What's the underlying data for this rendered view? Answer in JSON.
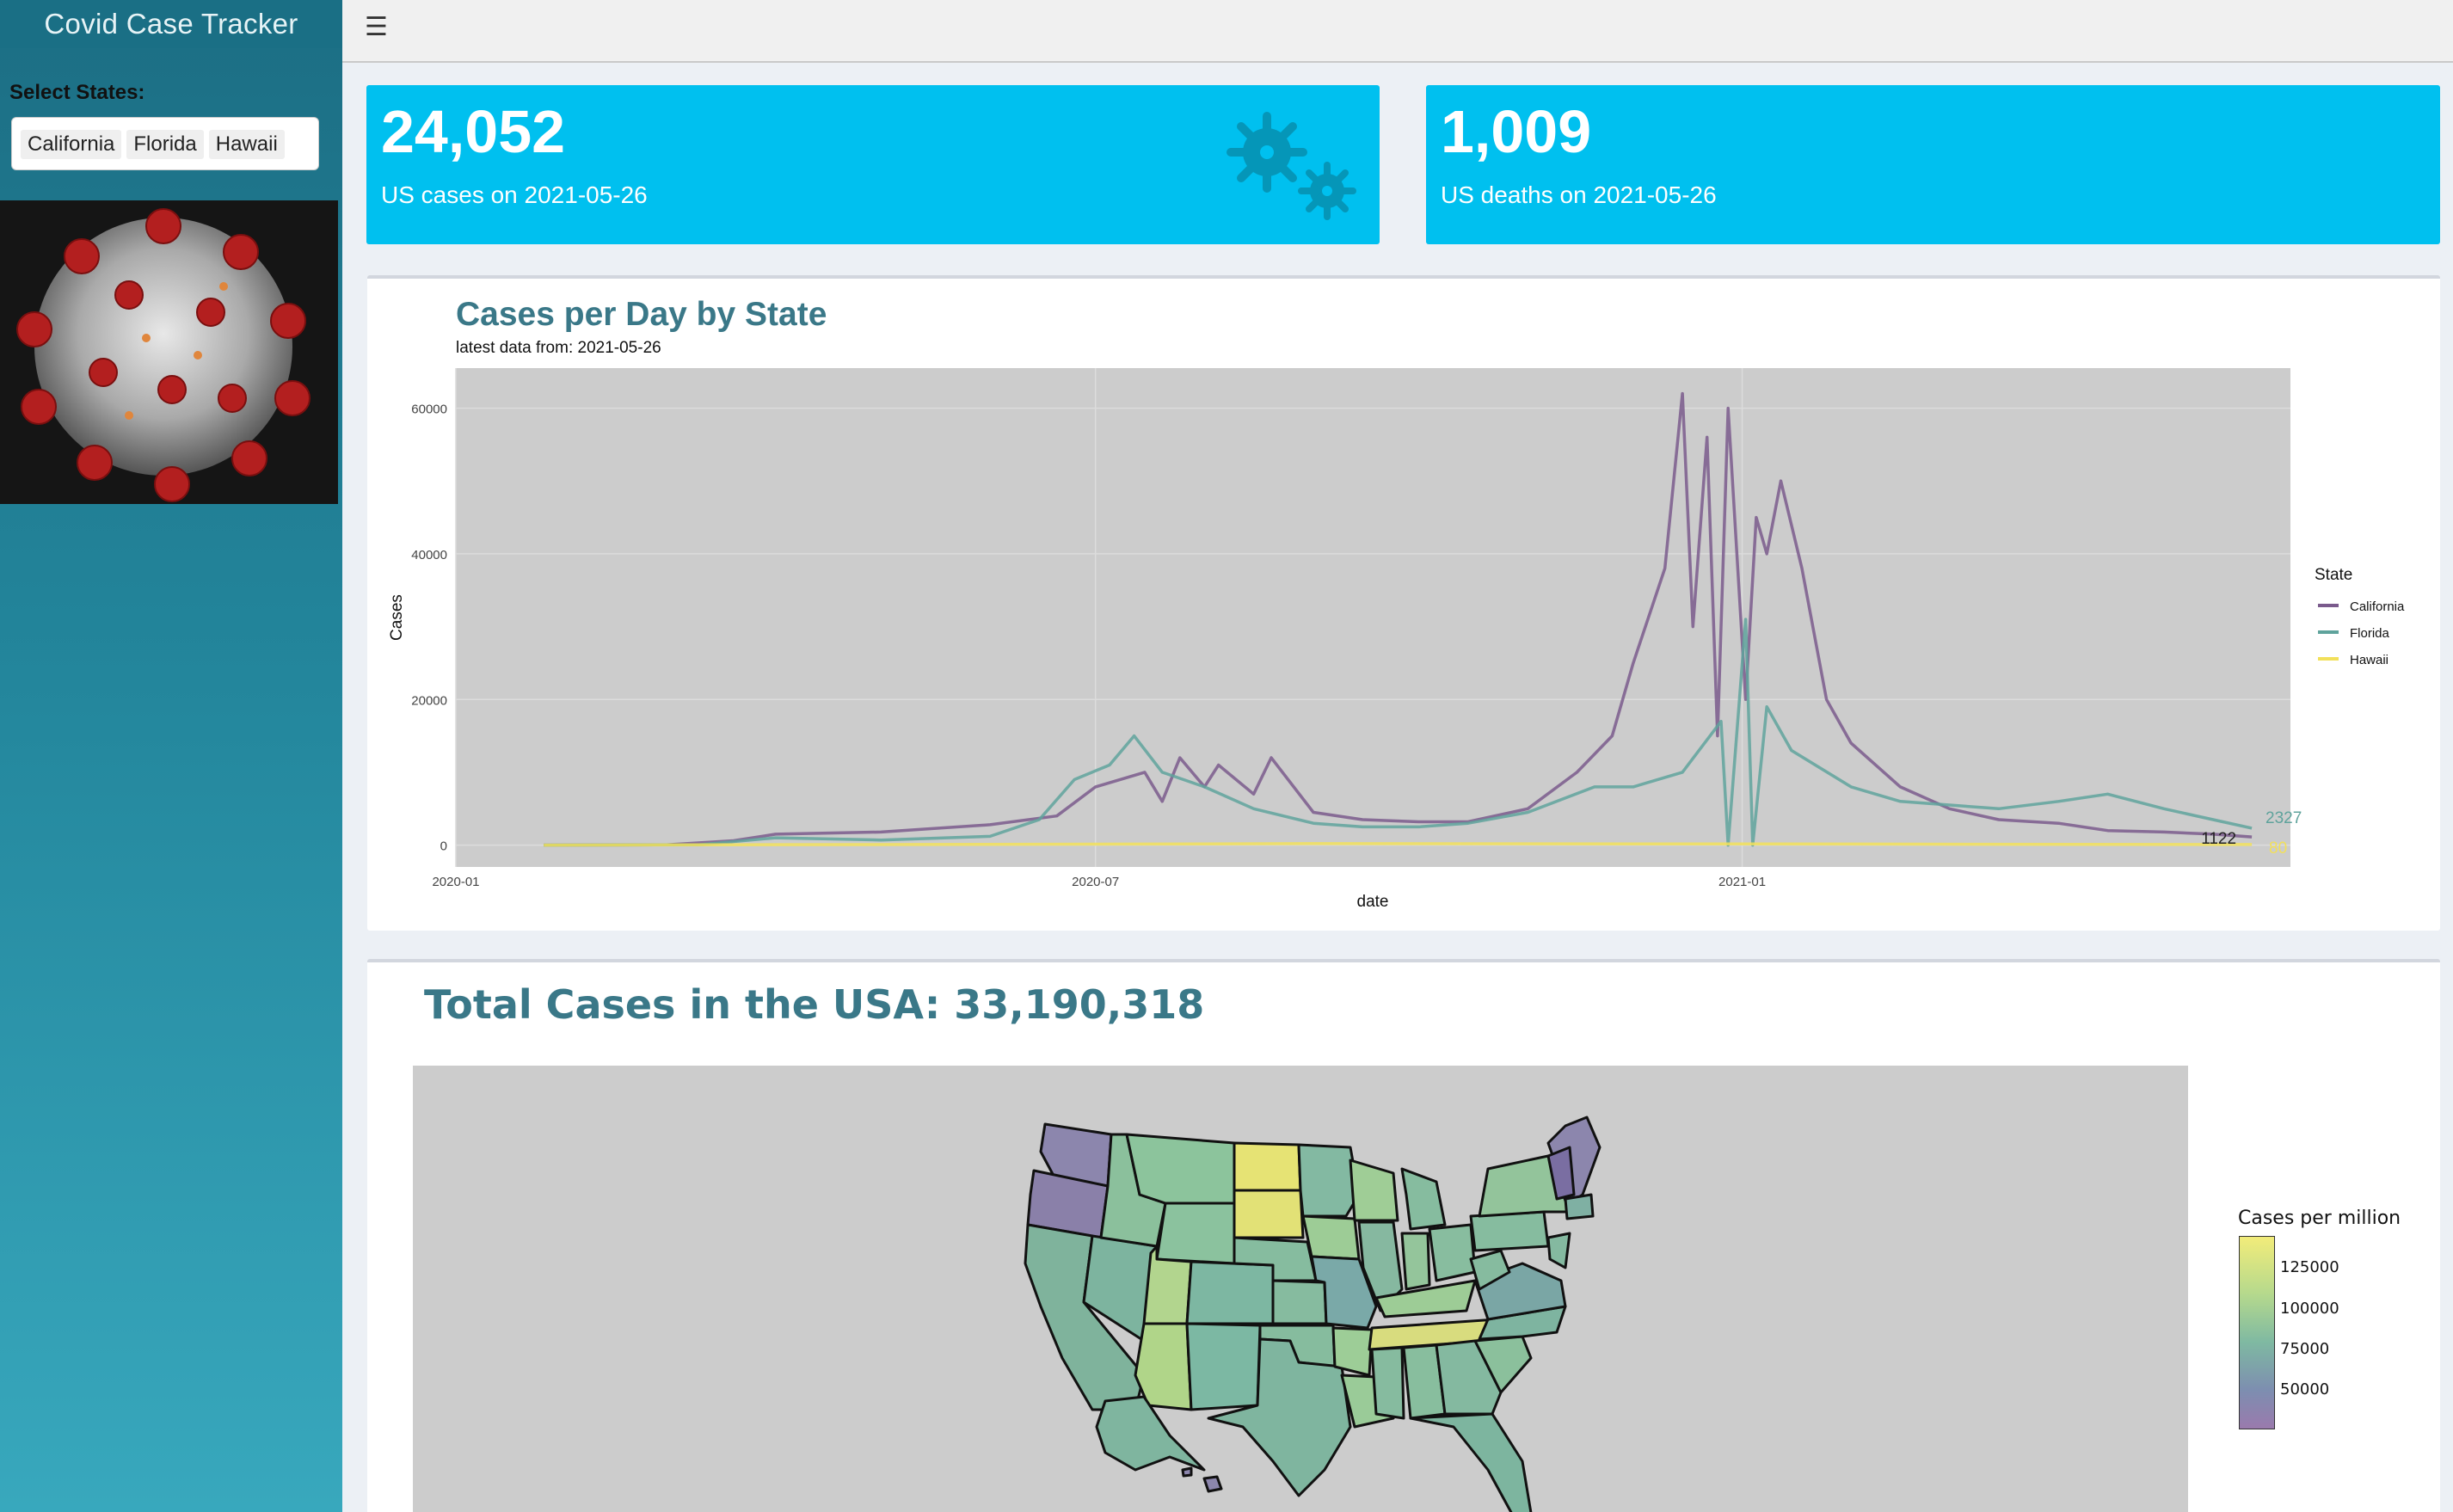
{
  "app": {
    "title": "Covid Case Tracker"
  },
  "sidebar": {
    "select_label": "Select States:",
    "selected_states": [
      "California",
      "Florida",
      "Hawaii"
    ]
  },
  "value_boxes": [
    {
      "value": "24,052",
      "label": "US cases on 2021-05-26",
      "icon": "virus-icon"
    },
    {
      "value": "1,009",
      "label": "US deaths on 2021-05-26"
    }
  ],
  "colors": {
    "accent": "#00c0ef",
    "title": "#3a7888",
    "california": "#7a5a8c",
    "florida": "#5fa39c",
    "hawaii": "#f2e05a"
  },
  "chart_data": {
    "type": "line",
    "title": "Cases per Day by State",
    "subtitle": "latest data from: 2021-05-26",
    "xlabel": "date",
    "ylabel": "Cases",
    "x_ticks": [
      "2020-01",
      "2020-07",
      "2021-01"
    ],
    "y_ticks": [
      "0",
      "20000",
      "40000",
      "60000"
    ],
    "xlim": [
      "2020-01-01",
      "2021-06-06"
    ],
    "ylim": [
      -3000,
      65500
    ],
    "grid": true,
    "legend_title": "State",
    "legend_position": "right",
    "series": [
      {
        "name": "California",
        "color": "#7a5a8c",
        "end_label": "1122",
        "points": [
          [
            "2020-01-26",
            0
          ],
          [
            "2020-03-01",
            50
          ],
          [
            "2020-03-20",
            600
          ],
          [
            "2020-04-01",
            1500
          ],
          [
            "2020-05-01",
            1800
          ],
          [
            "2020-06-01",
            2800
          ],
          [
            "2020-06-20",
            4000
          ],
          [
            "2020-07-01",
            8000
          ],
          [
            "2020-07-15",
            10000
          ],
          [
            "2020-07-20",
            6000
          ],
          [
            "2020-07-25",
            12000
          ],
          [
            "2020-08-01",
            8000
          ],
          [
            "2020-08-05",
            11000
          ],
          [
            "2020-08-15",
            7000
          ],
          [
            "2020-08-20",
            12000
          ],
          [
            "2020-09-01",
            4500
          ],
          [
            "2020-09-15",
            3500
          ],
          [
            "2020-10-01",
            3200
          ],
          [
            "2020-10-15",
            3200
          ],
          [
            "2020-11-01",
            5000
          ],
          [
            "2020-11-15",
            10000
          ],
          [
            "2020-11-25",
            15000
          ],
          [
            "2020-12-01",
            25000
          ],
          [
            "2020-12-10",
            38000
          ],
          [
            "2020-12-15",
            62000
          ],
          [
            "2020-12-18",
            30000
          ],
          [
            "2020-12-22",
            56000
          ],
          [
            "2020-12-25",
            15000
          ],
          [
            "2020-12-28",
            60000
          ],
          [
            "2021-01-02",
            20000
          ],
          [
            "2021-01-05",
            45000
          ],
          [
            "2021-01-08",
            40000
          ],
          [
            "2021-01-12",
            50000
          ],
          [
            "2021-01-18",
            38000
          ],
          [
            "2021-01-25",
            20000
          ],
          [
            "2021-02-01",
            14000
          ],
          [
            "2021-02-15",
            8000
          ],
          [
            "2021-03-01",
            5000
          ],
          [
            "2021-03-15",
            3500
          ],
          [
            "2021-04-01",
            3000
          ],
          [
            "2021-04-15",
            2000
          ],
          [
            "2021-05-01",
            1800
          ],
          [
            "2021-05-15",
            1500
          ],
          [
            "2021-05-26",
            1122
          ]
        ]
      },
      {
        "name": "Florida",
        "color": "#5fa39c",
        "end_label": "2327",
        "points": [
          [
            "2020-01-26",
            0
          ],
          [
            "2020-03-10",
            50
          ],
          [
            "2020-04-01",
            1000
          ],
          [
            "2020-05-01",
            700
          ],
          [
            "2020-06-01",
            1200
          ],
          [
            "2020-06-15",
            3500
          ],
          [
            "2020-06-25",
            9000
          ],
          [
            "2020-07-05",
            11000
          ],
          [
            "2020-07-12",
            15000
          ],
          [
            "2020-07-20",
            10000
          ],
          [
            "2020-08-01",
            8000
          ],
          [
            "2020-08-15",
            5000
          ],
          [
            "2020-09-01",
            3000
          ],
          [
            "2020-09-15",
            2500
          ],
          [
            "2020-10-01",
            2500
          ],
          [
            "2020-10-15",
            3000
          ],
          [
            "2020-11-01",
            4500
          ],
          [
            "2020-11-20",
            8000
          ],
          [
            "2020-12-01",
            8000
          ],
          [
            "2020-12-15",
            10000
          ],
          [
            "2020-12-26",
            17000
          ],
          [
            "2020-12-28",
            0
          ],
          [
            "2021-01-02",
            31000
          ],
          [
            "2021-01-04",
            0
          ],
          [
            "2021-01-08",
            19000
          ],
          [
            "2021-01-15",
            13000
          ],
          [
            "2021-02-01",
            8000
          ],
          [
            "2021-02-15",
            6000
          ],
          [
            "2021-03-01",
            5500
          ],
          [
            "2021-03-15",
            5000
          ],
          [
            "2021-04-01",
            6000
          ],
          [
            "2021-04-15",
            7000
          ],
          [
            "2021-05-01",
            5000
          ],
          [
            "2021-05-15",
            3500
          ],
          [
            "2021-05-26",
            2327
          ]
        ]
      },
      {
        "name": "Hawaii",
        "color": "#f2e05a",
        "end_label": "80",
        "points": [
          [
            "2020-01-26",
            0
          ],
          [
            "2020-08-01",
            150
          ],
          [
            "2020-09-01",
            200
          ],
          [
            "2021-01-01",
            150
          ],
          [
            "2021-05-26",
            80
          ]
        ]
      }
    ]
  },
  "map": {
    "title": "Total Cases in the USA: 33,190,318",
    "legend_title": "Cases per million",
    "legend_ticks": [
      "125000",
      "100000",
      "75000",
      "50000"
    ]
  }
}
